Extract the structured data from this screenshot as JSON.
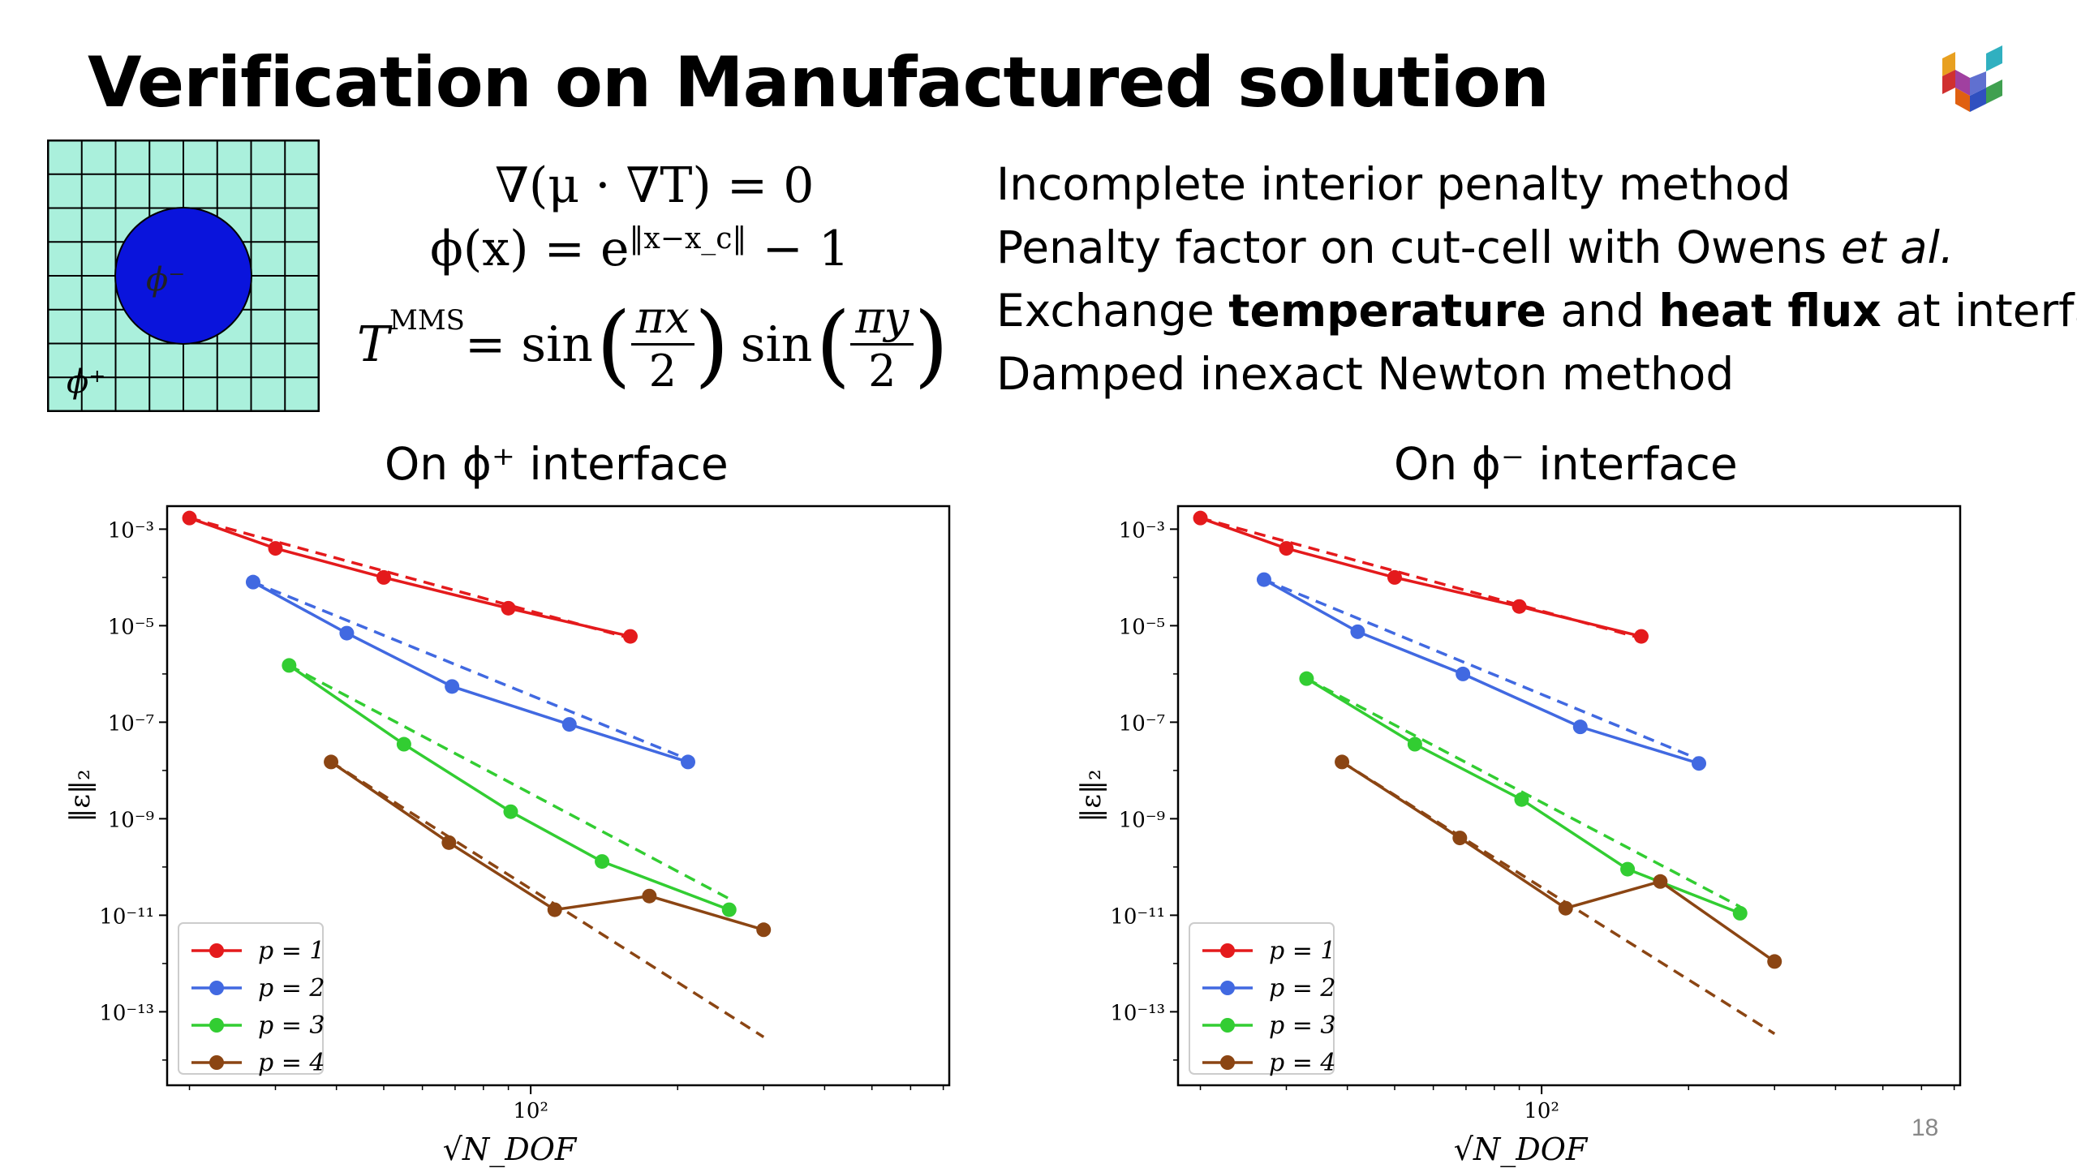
{
  "slide": {
    "title": "Verification on Manufactured solution",
    "page_number": "18",
    "domain_labels": {
      "inner": "ϕ⁻",
      "outer": "ϕ⁺"
    },
    "equations": {
      "eq1": "∇(μ · ∇T) = 0",
      "eq2_lhs": "ϕ(x) = e",
      "eq2_sup": "‖x−x_c‖",
      "eq2_rhs": " − 1",
      "eq3_lhs": "T",
      "eq3_sup": "MMS",
      "eq3_mid": " = sin",
      "eq3_num1": "πx",
      "eq3_den1": "2",
      "eq3_sin2": "sin",
      "eq3_num2": "πy",
      "eq3_den2": "2"
    },
    "bullets": [
      {
        "parts": [
          {
            "text": "Incomplete interior penalty method",
            "style": "normal"
          }
        ]
      },
      {
        "parts": [
          {
            "text": "Penalty factor on cut-cell with Owens ",
            "style": "normal"
          },
          {
            "text": "et al.",
            "style": "italic"
          }
        ]
      },
      {
        "parts": [
          {
            "text": "Exchange ",
            "style": "normal"
          },
          {
            "text": "temperature",
            "style": "bold"
          },
          {
            "text": " and ",
            "style": "normal"
          },
          {
            "text": "heat flux",
            "style": "bold"
          },
          {
            "text": " at interface",
            "style": "normal"
          }
        ]
      },
      {
        "parts": [
          {
            "text": "Damped inexact Newton method",
            "style": "normal"
          }
        ]
      }
    ],
    "colors": {
      "grid_fill": "#aaf0dc",
      "disk": "#0a14dc",
      "p1": "#e41a1c",
      "p2": "#4169e1",
      "p3": "#32cd32",
      "p4": "#8b4513"
    }
  },
  "chart_data": [
    {
      "type": "line",
      "title": "On ϕ⁺ interface",
      "xlabel": "√N_DOF",
      "ylabel": "‖ε‖₂",
      "xscale": "log",
      "yscale": "log",
      "xlim": [
        18,
        720
      ],
      "ylim": [
        3e-15,
        0.003
      ],
      "xtick_labels": [
        {
          "value": 100,
          "label": "10²"
        }
      ],
      "ytick_labels": [
        {
          "value": 0.001,
          "label": "10⁻³"
        },
        {
          "value": 1e-05,
          "label": "10⁻⁵"
        },
        {
          "value": 1e-07,
          "label": "10⁻⁷"
        },
        {
          "value": 1e-09,
          "label": "10⁻⁹"
        },
        {
          "value": 1e-11,
          "label": "10⁻¹¹"
        },
        {
          "value": 1e-13,
          "label": "10⁻¹³"
        }
      ],
      "legend_position": "lower-left",
      "grid": false,
      "series": [
        {
          "name": "p = 1",
          "color": "#e41a1c",
          "x": [
            20,
            30,
            50,
            90,
            160
          ],
          "y": [
            0.0017,
            0.0004,
            0.0001,
            2.3e-05,
            6e-06
          ],
          "ref_x": [
            20,
            160
          ],
          "ref_y": [
            0.0017,
            5.5e-06
          ]
        },
        {
          "name": "p = 2",
          "color": "#4169e1",
          "x": [
            27,
            42,
            69,
            120,
            210
          ],
          "y": [
            8e-05,
            7e-06,
            5.5e-07,
            9e-08,
            1.5e-08
          ],
          "ref_x": [
            27,
            210
          ],
          "ref_y": [
            8e-05,
            1.7e-08
          ]
        },
        {
          "name": "p = 3",
          "color": "#32cd32",
          "x": [
            32,
            55,
            91,
            140,
            255
          ],
          "y": [
            1.5e-06,
            3.5e-08,
            1.4e-09,
            1.3e-10,
            1.3e-11
          ],
          "ref_x": [
            32,
            255
          ],
          "ref_y": [
            1.5e-06,
            2.2e-11
          ]
        },
        {
          "name": "p = 4",
          "color": "#8b4513",
          "x": [
            39,
            68,
            112,
            175,
            300
          ],
          "y": [
            1.5e-08,
            3.2e-10,
            1.3e-11,
            2.5e-11,
            5e-12
          ],
          "ref_x": [
            39,
            300
          ],
          "ref_y": [
            1.5e-08,
            3e-14
          ]
        }
      ]
    },
    {
      "type": "line",
      "title": "On ϕ⁻ interface",
      "xlabel": "√N_DOF",
      "ylabel": "‖ε‖₂",
      "xscale": "log",
      "yscale": "log",
      "xlim": [
        18,
        720
      ],
      "ylim": [
        3e-15,
        0.003
      ],
      "xtick_labels": [
        {
          "value": 100,
          "label": "10²"
        }
      ],
      "ytick_labels": [
        {
          "value": 0.001,
          "label": "10⁻³"
        },
        {
          "value": 1e-05,
          "label": "10⁻⁵"
        },
        {
          "value": 1e-07,
          "label": "10⁻⁷"
        },
        {
          "value": 1e-09,
          "label": "10⁻⁹"
        },
        {
          "value": 1e-11,
          "label": "10⁻¹¹"
        },
        {
          "value": 1e-13,
          "label": "10⁻¹³"
        }
      ],
      "legend_position": "lower-left",
      "grid": false,
      "series": [
        {
          "name": "p = 1",
          "color": "#e41a1c",
          "x": [
            20,
            30,
            50,
            90,
            160
          ],
          "y": [
            0.0017,
            0.0004,
            0.0001,
            2.5e-05,
            6e-06
          ],
          "ref_x": [
            20,
            160
          ],
          "ref_y": [
            0.0017,
            5.5e-06
          ]
        },
        {
          "name": "p = 2",
          "color": "#4169e1",
          "x": [
            27,
            42,
            69,
            120,
            210
          ],
          "y": [
            9e-05,
            7.5e-06,
            1e-06,
            8e-08,
            1.4e-08
          ],
          "ref_x": [
            27,
            210
          ],
          "ref_y": [
            9e-05,
            1.7e-08
          ]
        },
        {
          "name": "p = 3",
          "color": "#32cd32",
          "x": [
            33,
            55,
            91,
            150,
            255
          ],
          "y": [
            8e-07,
            3.5e-08,
            2.5e-09,
            9e-11,
            1.1e-11
          ],
          "ref_x": [
            33,
            255
          ],
          "ref_y": [
            8e-07,
            1.5e-11
          ]
        },
        {
          "name": "p = 4",
          "color": "#8b4513",
          "x": [
            39,
            68,
            112,
            175,
            300
          ],
          "y": [
            1.5e-08,
            4e-10,
            1.4e-11,
            5e-11,
            1.1e-12
          ],
          "ref_x": [
            39,
            300
          ],
          "ref_y": [
            1.5e-08,
            3.5e-14
          ]
        }
      ]
    }
  ]
}
